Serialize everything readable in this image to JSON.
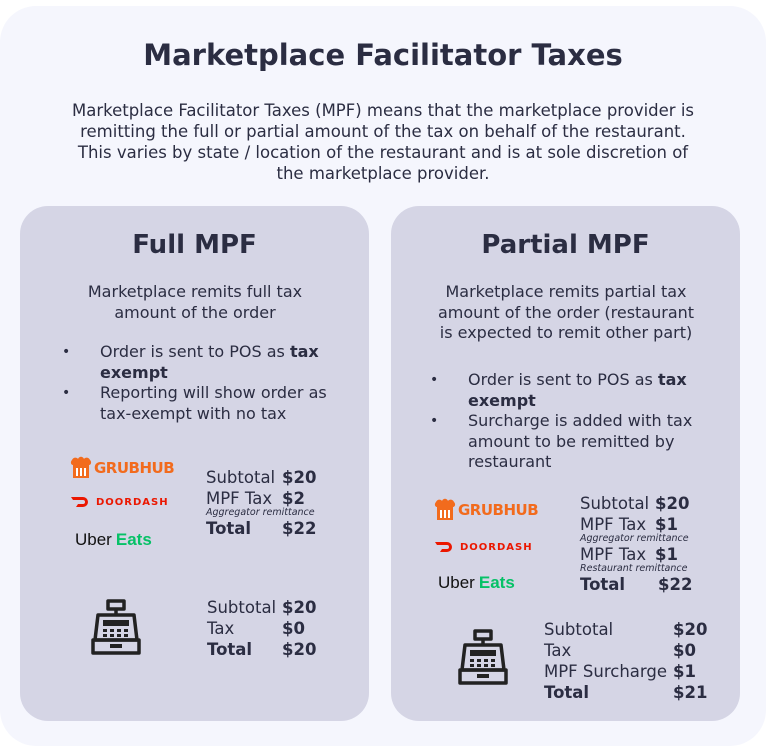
{
  "title": "Marketplace Facilitator Taxes",
  "intro": "Marketplace Facilitator Taxes (MPF) means that the marketplace provider is remitting the full or partial amount of the tax on behalf of the restaurant. This varies by state / location of the restaurant and is at sole discretion of the marketplace provider.",
  "logos": {
    "grubhub": "GRUBHUB",
    "doordash": "DOORDASH",
    "uber": "Uber",
    "eats": "Eats"
  },
  "full": {
    "title": "Full MPF",
    "subtitle": "Marketplace remits full tax amount of the order",
    "bullet1_pre": "Order is sent to POS as ",
    "bullet1_bold": "tax exempt",
    "bullet2": "Reporting will show order as tax-exempt with no tax",
    "market": {
      "subtotal_label": "Subtotal",
      "subtotal_value": "$20",
      "mpf_label": "MPF Tax",
      "mpf_value": "$2",
      "note": "Aggregator remittance",
      "total_label": "Total",
      "total_value": "$22"
    },
    "pos": {
      "subtotal_label": "Subtotal",
      "subtotal_value": "$20",
      "tax_label": "Tax",
      "tax_value": "$0",
      "total_label": "Total",
      "total_value": "$20"
    }
  },
  "partial": {
    "title": "Partial MPF",
    "subtitle": "Marketplace remits partial tax amount of the order (restaurant is expected to remit other part)",
    "bullet1_pre": "Order is sent to POS as ",
    "bullet1_bold": "tax exempt",
    "bullet2": "Surcharge is added with tax amount to be remitted by restaurant",
    "market": {
      "subtotal_label": "Subtotal",
      "subtotal_value": "$20",
      "mpf1_label": "MPF Tax",
      "mpf1_value": "$1",
      "note1": "Aggregator remittance",
      "mpf2_label": "MPF Tax",
      "mpf2_value": "$1",
      "note2": "Restaurant remittance",
      "total_label": "Total",
      "total_value": "$22"
    },
    "pos": {
      "subtotal_label": "Subtotal",
      "subtotal_value": "$20",
      "tax_label": "Tax",
      "tax_value": "$0",
      "surcharge_label": "MPF Surcharge",
      "surcharge_value": "$1",
      "total_label": "Total",
      "total_value": "$21"
    }
  }
}
